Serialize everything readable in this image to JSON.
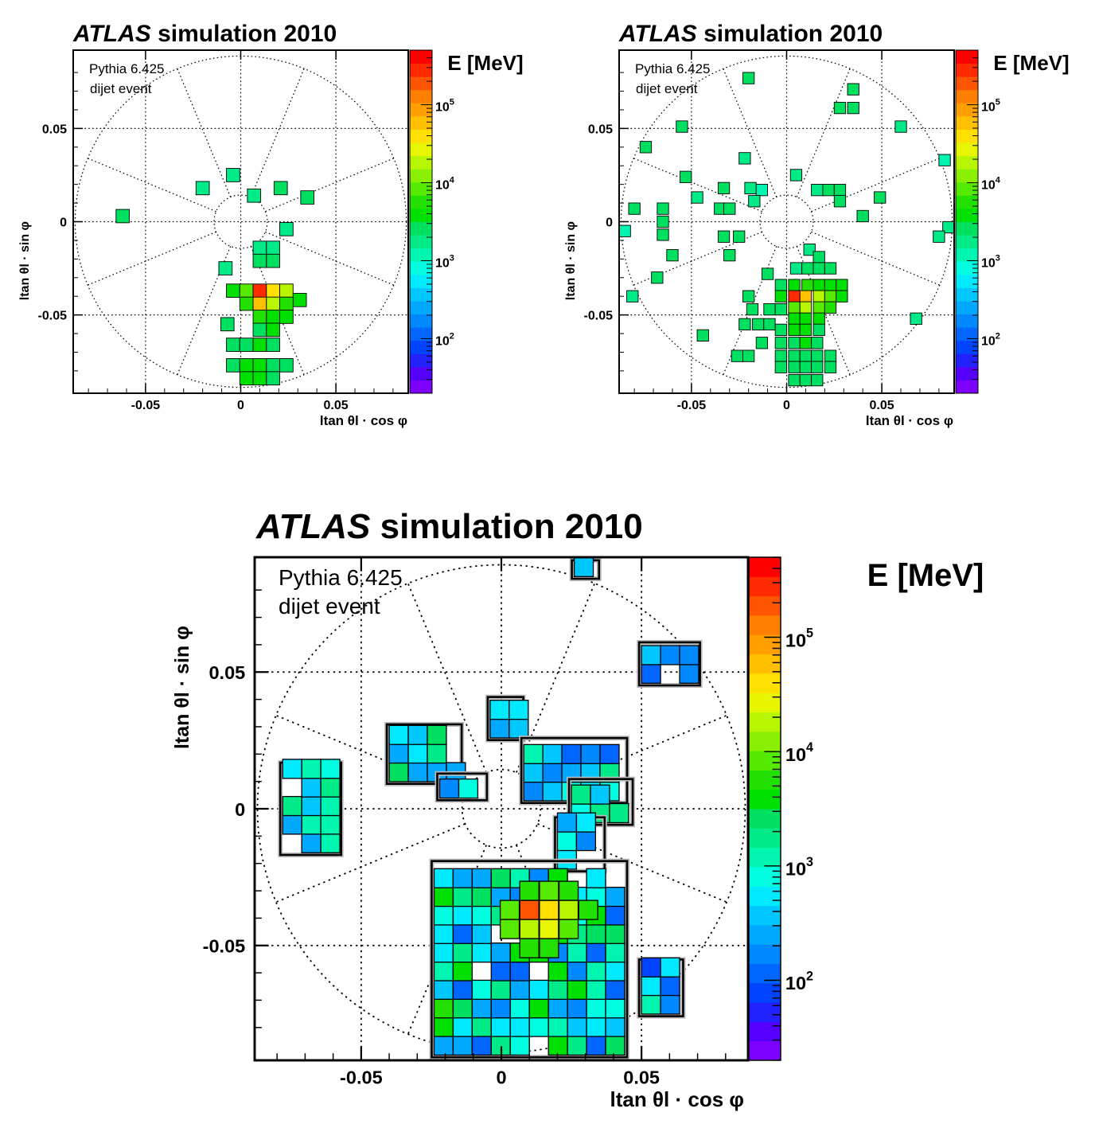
{
  "figure": {
    "panels": [
      {
        "id": "top-left",
        "title_italic": "ATLAS",
        "title_rest": " simulation 2010",
        "annotation_line1": "Pythia 6.425",
        "annotation_line2": "dijet event",
        "xlabel": "ltan θl · cos φ",
        "ylabel": "ltan θl · sin φ",
        "xticks": [
          "-0.05",
          "0",
          "0.05"
        ],
        "yticks": [
          "0.05",
          "0",
          "-0.05"
        ],
        "colorbar_title": "E [MeV]",
        "colorbar_ticks": [
          {
            "base": "10",
            "exp": "5"
          },
          {
            "base": "10",
            "exp": "4"
          },
          {
            "base": "10",
            "exp": "3"
          },
          {
            "base": "10",
            "exp": "2"
          }
        ]
      },
      {
        "id": "top-right",
        "title_italic": "ATLAS",
        "title_rest": " simulation 2010",
        "annotation_line1": "Pythia 6.425",
        "annotation_line2": "dijet event",
        "xlabel": "ltan θl · cos φ",
        "ylabel": "ltan θl · sin φ",
        "xticks": [
          "-0.05",
          "0",
          "0.05"
        ],
        "yticks": [
          "0.05",
          "0",
          "-0.05"
        ],
        "colorbar_title": "E [MeV]",
        "colorbar_ticks": [
          {
            "base": "10",
            "exp": "5"
          },
          {
            "base": "10",
            "exp": "4"
          },
          {
            "base": "10",
            "exp": "3"
          },
          {
            "base": "10",
            "exp": "2"
          }
        ]
      },
      {
        "id": "bottom",
        "title_italic": "ATLAS",
        "title_rest": " simulation 2010",
        "annotation_line1": "Pythia 6.425",
        "annotation_line2": "dijet event",
        "xlabel": "ltan θl · cos φ",
        "ylabel": "ltan θl · sin φ",
        "xticks": [
          "-0.05",
          "0",
          "0.05"
        ],
        "yticks": [
          "0.05",
          "0",
          "-0.05"
        ],
        "colorbar_title": "E [MeV]",
        "colorbar_ticks": [
          {
            "base": "10",
            "exp": "5"
          },
          {
            "base": "10",
            "exp": "4"
          },
          {
            "base": "10",
            "exp": "3"
          },
          {
            "base": "10",
            "exp": "2"
          }
        ]
      }
    ]
  },
  "colors": {
    "colorbar": [
      "#7b00ff",
      "#5500ff",
      "#2222ff",
      "#0044ff",
      "#0066ff",
      "#0088ff",
      "#00a8ff",
      "#00c8ff",
      "#00eaff",
      "#00ffe0",
      "#00f5b0",
      "#00ea88",
      "#00e060",
      "#00e000",
      "#22e000",
      "#55ea00",
      "#88f000",
      "#b8f500",
      "#e8f500",
      "#ffe000",
      "#ffc000",
      "#ffa000",
      "#ff8000",
      "#ff5500",
      "#ff2a00",
      "#ff0000"
    ],
    "energy_scale": {
      "log10_min": 1.3,
      "log10_max": 5.7
    }
  },
  "chart_data": [
    {
      "type": "heatmap",
      "title": "ATLAS simulation 2010",
      "annotation": "Pythia 6.425 dijet event",
      "xlabel": "ltan θl · cos φ",
      "ylabel": "ltan θl · sin φ",
      "xlim": [
        -0.088,
        0.088
      ],
      "ylim": [
        -0.092,
        0.092
      ],
      "colorbar_label": "E [MeV]",
      "colorbar_range_log10": [
        1.3,
        5.7
      ],
      "log_color_scale": true,
      "grid": true,
      "cell_size": 0.007,
      "cells": [
        [
          -0.062,
          0.003,
          3.4
        ],
        [
          -0.02,
          0.018,
          3.3
        ],
        [
          -0.004,
          0.025,
          3.3
        ],
        [
          0.007,
          0.014,
          3.3
        ],
        [
          0.021,
          0.018,
          3.4
        ],
        [
          0.035,
          0.013,
          3.4
        ],
        [
          0.024,
          -0.004,
          3.2
        ],
        [
          -0.008,
          -0.025,
          3.2
        ],
        [
          0.01,
          -0.014,
          3.3
        ],
        [
          0.017,
          -0.014,
          3.3
        ],
        [
          0.01,
          -0.021,
          3.4
        ],
        [
          0.017,
          -0.021,
          3.4
        ],
        [
          -0.004,
          -0.037,
          3.5
        ],
        [
          0.003,
          -0.037,
          3.9
        ],
        [
          0.01,
          -0.037,
          5.5
        ],
        [
          0.017,
          -0.037,
          4.6
        ],
        [
          0.024,
          -0.037,
          4.2
        ],
        [
          0.031,
          -0.042,
          3.6
        ],
        [
          0.003,
          -0.044,
          3.7
        ],
        [
          0.01,
          -0.044,
          4.8
        ],
        [
          0.017,
          -0.044,
          4.2
        ],
        [
          0.024,
          -0.044,
          3.8
        ],
        [
          0.01,
          -0.051,
          3.7
        ],
        [
          0.017,
          -0.051,
          3.6
        ],
        [
          0.024,
          -0.051,
          3.5
        ],
        [
          -0.007,
          -0.055,
          3.4
        ],
        [
          0.01,
          -0.058,
          3.4
        ],
        [
          0.017,
          -0.058,
          3.5
        ],
        [
          -0.004,
          -0.066,
          3.4
        ],
        [
          0.003,
          -0.066,
          3.4
        ],
        [
          0.01,
          -0.066,
          3.5
        ],
        [
          0.017,
          -0.066,
          3.4
        ],
        [
          -0.004,
          -0.077,
          3.4
        ],
        [
          0.003,
          -0.077,
          3.5
        ],
        [
          0.01,
          -0.077,
          3.5
        ],
        [
          0.017,
          -0.077,
          3.4
        ],
        [
          0.024,
          -0.077,
          3.4
        ],
        [
          0.003,
          -0.084,
          3.5
        ],
        [
          0.01,
          -0.084,
          3.5
        ],
        [
          0.017,
          -0.084,
          3.4
        ]
      ]
    },
    {
      "type": "heatmap",
      "title": "ATLAS simulation 2010",
      "annotation": "Pythia 6.425 dijet event",
      "xlabel": "ltan θl · cos φ",
      "ylabel": "ltan θl · sin φ",
      "xlim": [
        -0.088,
        0.088
      ],
      "ylim": [
        -0.092,
        0.092
      ],
      "colorbar_label": "E [MeV]",
      "colorbar_range_log10": [
        1.3,
        5.7
      ],
      "log_color_scale": true,
      "grid": true,
      "cell_size": 0.006,
      "cells": [
        [
          -0.02,
          0.077,
          3.4
        ],
        [
          0.035,
          0.071,
          3.4
        ],
        [
          0.028,
          0.061,
          3.4
        ],
        [
          0.035,
          0.061,
          3.4
        ],
        [
          -0.055,
          0.051,
          3.4
        ],
        [
          0.06,
          0.051,
          3.3
        ],
        [
          -0.074,
          0.04,
          3.4
        ],
        [
          -0.022,
          0.034,
          3.3
        ],
        [
          0.083,
          0.033,
          3.0
        ],
        [
          -0.053,
          0.024,
          3.4
        ],
        [
          0.005,
          0.025,
          3.2
        ],
        [
          -0.033,
          0.018,
          3.4
        ],
        [
          -0.019,
          0.018,
          3.3
        ],
        [
          -0.013,
          0.017,
          3.1
        ],
        [
          0.016,
          0.017,
          3.3
        ],
        [
          0.022,
          0.017,
          3.4
        ],
        [
          0.028,
          0.017,
          3.4
        ],
        [
          0.049,
          0.013,
          3.4
        ],
        [
          -0.047,
          0.013,
          3.3
        ],
        [
          -0.035,
          0.007,
          3.4
        ],
        [
          -0.03,
          0.007,
          3.4
        ],
        [
          -0.017,
          0.011,
          3.2
        ],
        [
          0.028,
          0.011,
          3.4
        ],
        [
          0.04,
          0.003,
          3.4
        ],
        [
          -0.08,
          0.007,
          3.4
        ],
        [
          -0.065,
          0.007,
          3.4
        ],
        [
          -0.065,
          0.0,
          3.4
        ],
        [
          -0.085,
          -0.005,
          3.1
        ],
        [
          0.085,
          -0.003,
          3.3
        ],
        [
          -0.065,
          -0.007,
          3.4
        ],
        [
          -0.033,
          -0.008,
          3.4
        ],
        [
          -0.025,
          -0.008,
          3.4
        ],
        [
          0.08,
          -0.008,
          3.3
        ],
        [
          -0.06,
          -0.018,
          3.4
        ],
        [
          -0.03,
          -0.018,
          3.4
        ],
        [
          0.012,
          -0.015,
          3.3
        ],
        [
          0.017,
          -0.019,
          3.4
        ],
        [
          0.005,
          -0.025,
          3.3
        ],
        [
          0.011,
          -0.025,
          3.4
        ],
        [
          0.017,
          -0.025,
          3.4
        ],
        [
          0.023,
          -0.025,
          3.4
        ],
        [
          -0.068,
          -0.03,
          3.4
        ],
        [
          -0.01,
          -0.028,
          3.4
        ],
        [
          -0.003,
          -0.034,
          3.4
        ],
        [
          0.004,
          -0.034,
          3.5
        ],
        [
          0.011,
          -0.034,
          3.7
        ],
        [
          0.017,
          -0.034,
          3.6
        ],
        [
          0.023,
          -0.034,
          3.5
        ],
        [
          0.029,
          -0.034,
          3.5
        ],
        [
          -0.081,
          -0.04,
          3.3
        ],
        [
          -0.02,
          -0.04,
          3.4
        ],
        [
          -0.003,
          -0.04,
          3.6
        ],
        [
          0.004,
          -0.04,
          5.5
        ],
        [
          0.01,
          -0.04,
          4.7
        ],
        [
          0.017,
          -0.04,
          4.3
        ],
        [
          0.023,
          -0.04,
          3.9
        ],
        [
          0.029,
          -0.04,
          3.5
        ],
        [
          0.004,
          -0.046,
          3.9
        ],
        [
          0.01,
          -0.046,
          4.3
        ],
        [
          0.017,
          -0.046,
          4.0
        ],
        [
          0.023,
          -0.046,
          3.7
        ],
        [
          -0.018,
          -0.047,
          3.4
        ],
        [
          -0.009,
          -0.047,
          3.4
        ],
        [
          -0.003,
          -0.047,
          3.4
        ],
        [
          0.004,
          -0.052,
          3.5
        ],
        [
          0.01,
          -0.052,
          3.6
        ],
        [
          0.017,
          -0.052,
          3.5
        ],
        [
          0.068,
          -0.052,
          3.3
        ],
        [
          -0.022,
          -0.055,
          3.4
        ],
        [
          -0.015,
          -0.055,
          3.4
        ],
        [
          -0.009,
          -0.055,
          3.4
        ],
        [
          -0.003,
          -0.058,
          3.4
        ],
        [
          0.004,
          -0.058,
          3.5
        ],
        [
          0.01,
          -0.058,
          3.5
        ],
        [
          0.017,
          -0.058,
          3.4
        ],
        [
          -0.044,
          -0.061,
          3.4
        ],
        [
          -0.013,
          -0.065,
          3.4
        ],
        [
          -0.003,
          -0.065,
          3.4
        ],
        [
          0.004,
          -0.065,
          3.4
        ],
        [
          0.01,
          -0.065,
          3.5
        ],
        [
          0.016,
          -0.065,
          3.4
        ],
        [
          -0.026,
          -0.072,
          3.4
        ],
        [
          -0.02,
          -0.072,
          3.4
        ],
        [
          -0.003,
          -0.072,
          3.4
        ],
        [
          0.004,
          -0.072,
          3.4
        ],
        [
          0.01,
          -0.072,
          3.4
        ],
        [
          0.016,
          -0.072,
          3.4
        ],
        [
          0.023,
          -0.072,
          3.4
        ],
        [
          -0.003,
          -0.078,
          3.4
        ],
        [
          0.004,
          -0.078,
          3.4
        ],
        [
          0.01,
          -0.078,
          3.4
        ],
        [
          0.016,
          -0.078,
          3.4
        ],
        [
          0.023,
          -0.078,
          3.4
        ],
        [
          0.004,
          -0.085,
          3.4
        ],
        [
          0.01,
          -0.085,
          3.4
        ],
        [
          0.016,
          -0.085,
          3.4
        ]
      ]
    },
    {
      "type": "heatmap",
      "title": "ATLAS simulation 2010",
      "annotation": "Pythia 6.425 dijet event",
      "xlabel": "ltan θl · cos φ",
      "ylabel": "ltan θl · sin φ",
      "xlim": [
        -0.088,
        0.088
      ],
      "ylim": [
        -0.092,
        0.092
      ],
      "colorbar_label": "E [MeV]",
      "colorbar_range_log10": [
        1.3,
        5.7
      ],
      "log_color_scale": true,
      "grid": true,
      "cell_size": 0.0068,
      "clusters": [
        {
          "x": [
            -0.078,
            -0.058
          ],
          "y": [
            -0.016,
            0.016
          ],
          "log10_range": [
            1.9,
            3.5
          ]
        },
        {
          "x": [
            -0.04,
            -0.015
          ],
          "y": [
            0.01,
            0.03
          ],
          "log10_range": [
            1.9,
            3.5
          ]
        },
        {
          "x": [
            -0.022,
            -0.006
          ],
          "y": [
            0.004,
            0.012
          ],
          "log10_range": [
            1.9,
            3.0
          ]
        },
        {
          "x": [
            -0.004,
            0.007
          ],
          "y": [
            0.026,
            0.04
          ],
          "log10_range": [
            2.2,
            3.3
          ]
        },
        {
          "x": [
            0.008,
            0.044
          ],
          "y": [
            0.003,
            0.025
          ],
          "log10_range": [
            1.9,
            3.4
          ]
        },
        {
          "x": [
            0.025,
            0.046
          ],
          "y": [
            -0.005,
            0.01
          ],
          "log10_range": [
            2.2,
            3.4
          ]
        },
        {
          "x": [
            0.05,
            0.07
          ],
          "y": [
            0.046,
            0.06
          ],
          "log10_range": [
            1.9,
            3.3
          ]
        },
        {
          "x": [
            0.026,
            0.034
          ],
          "y": [
            0.085,
            0.09
          ],
          "log10_range": [
            1.9,
            2.6
          ]
        },
        {
          "x": [
            0.02,
            0.036
          ],
          "y": [
            -0.022,
            -0.004
          ],
          "log10_range": [
            2.2,
            3.3
          ]
        },
        {
          "x": [
            -0.024,
            0.044
          ],
          "y": [
            -0.09,
            -0.02
          ],
          "log10_range": [
            2.0,
            3.7
          ]
        },
        {
          "x": [
            0.05,
            0.064
          ],
          "y": [
            -0.075,
            -0.056
          ],
          "log10_range": [
            1.9,
            3.2
          ]
        }
      ],
      "peaks": [
        [
          0.01,
          -0.037,
          5.3
        ],
        [
          0.017,
          -0.037,
          4.6
        ],
        [
          0.017,
          -0.044,
          4.5
        ],
        [
          0.024,
          -0.037,
          4.3
        ],
        [
          0.01,
          -0.044,
          4.2
        ],
        [
          0.003,
          -0.037,
          4.0
        ],
        [
          0.024,
          -0.044,
          4.0
        ],
        [
          0.003,
          -0.044,
          3.9
        ],
        [
          0.017,
          -0.03,
          3.9
        ],
        [
          0.01,
          -0.03,
          3.8
        ],
        [
          0.031,
          -0.037,
          3.8
        ],
        [
          0.017,
          -0.051,
          3.8
        ],
        [
          0.01,
          -0.051,
          3.7
        ],
        [
          0.024,
          -0.03,
          3.7
        ]
      ]
    }
  ]
}
